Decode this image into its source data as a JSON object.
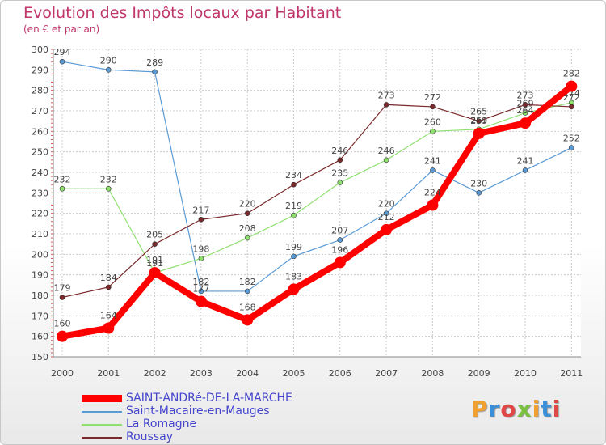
{
  "title": "Evolution des Impôts locaux par Habitant",
  "subtitle": "(en € et par an)",
  "logo": {
    "text": "Proxiti",
    "colors": [
      "#f0a030",
      "#3a8fd8",
      "#e04848",
      "#7cc040",
      "#f0a030",
      "#3a8fd8",
      "#e04848"
    ]
  },
  "chart_data": {
    "type": "line",
    "x": [
      "2000",
      "2001",
      "2002",
      "2003",
      "2004",
      "2005",
      "2006",
      "2007",
      "2008",
      "2009",
      "2010",
      "2011"
    ],
    "ylim": [
      150,
      300
    ],
    "yticks": [
      "150",
      "160",
      "170",
      "180",
      "190",
      "200",
      "210",
      "220",
      "230",
      "240",
      "250",
      "260",
      "270",
      "280",
      "290",
      "300"
    ],
    "grid": true,
    "series": [
      {
        "name": "SAINT-ANDRé-DE-LA-MARCHE",
        "color": "#ff0000",
        "bold": true,
        "values": [
          160,
          164,
          191,
          177,
          168,
          183,
          196,
          212,
          224,
          259,
          264,
          282
        ]
      },
      {
        "name": "Saint-Macaire-en-Mauges",
        "color": "#5b9bd5",
        "bold": false,
        "values": [
          294,
          290,
          289,
          182,
          182,
          199,
          207,
          220,
          241,
          230,
          241,
          252
        ]
      },
      {
        "name": "La Romagne",
        "color": "#90e070",
        "bold": false,
        "values": [
          232,
          232,
          191,
          198,
          208,
          219,
          235,
          246,
          260,
          261,
          269,
          274
        ]
      },
      {
        "name": "Roussay",
        "color": "#7a2a2a",
        "bold": false,
        "values": [
          179,
          184,
          205,
          217,
          220,
          234,
          246,
          273,
          272,
          265,
          273,
          272
        ]
      }
    ]
  }
}
